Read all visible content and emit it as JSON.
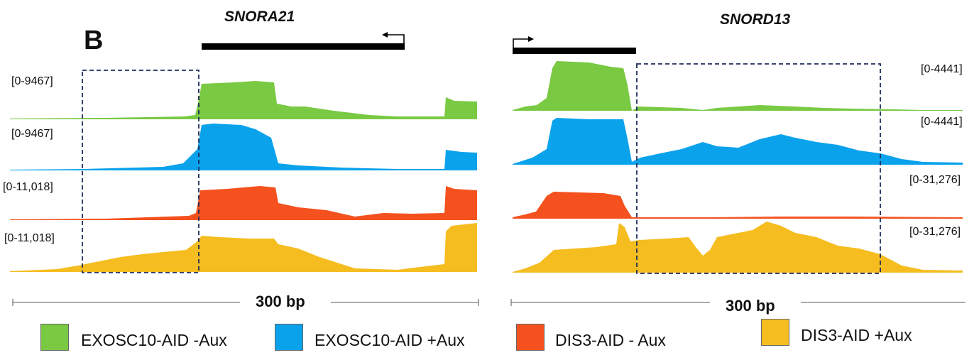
{
  "panel_label": "B",
  "genes": [
    {
      "name": "SNORA21",
      "strand": "-"
    },
    {
      "name": "SNORD13",
      "strand": "+"
    }
  ],
  "tracks": [
    {
      "label": "EXOSC10-AID -Aux",
      "color": "#7ac943"
    },
    {
      "label": "EXOSC10-AID +Aux",
      "color": "#0ba2ec"
    },
    {
      "label": "DIS3-AID - Aux",
      "color": "#f4511e"
    },
    {
      "label": "DIS3-AID +Aux",
      "color": "#f5bd1f"
    }
  ],
  "ranges": {
    "left": [
      "[0-9467]",
      "[0-9467]",
      "[0-11,018]",
      "[0-11,018]"
    ],
    "right": [
      "[0-4441]",
      "[0-4441]",
      "[0-31,276]",
      "[0-31,276]"
    ]
  },
  "scale_bars": [
    "300 bp",
    "300 bp"
  ],
  "box_color": "#1f2d5a"
}
